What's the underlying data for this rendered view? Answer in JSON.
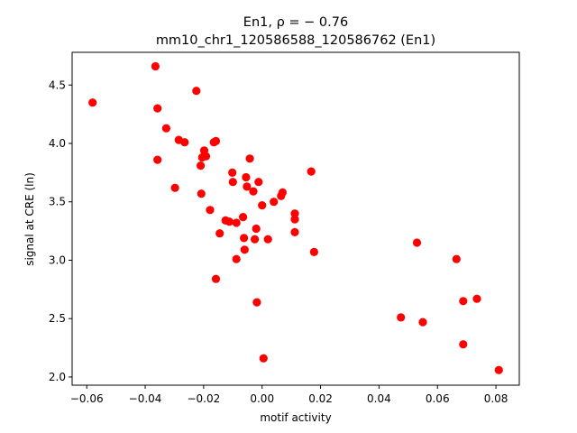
{
  "chart_data": {
    "type": "scatter",
    "title_line1": "En1, ρ = − 0.76",
    "title_line2": "mm10_chr1_120586588_120586762 (En1)",
    "xlabel": "motif activity",
    "ylabel": "signal at CRE (ln)",
    "xlim": [
      -0.065,
      0.088
    ],
    "ylim": [
      1.93,
      4.78
    ],
    "xticks": [
      -0.06,
      -0.04,
      -0.02,
      0.0,
      0.02,
      0.04,
      0.06,
      0.08
    ],
    "xtick_labels": [
      "−0.06",
      "−0.04",
      "−0.02",
      "0.00",
      "0.02",
      "0.04",
      "0.06",
      "0.08"
    ],
    "yticks": [
      2.0,
      2.5,
      3.0,
      3.5,
      4.0,
      4.5
    ],
    "ytick_labels": [
      "2.0",
      "2.5",
      "3.0",
      "3.5",
      "4.0",
      "4.5"
    ],
    "grid": false,
    "marker_color": "#ff0000",
    "points": [
      {
        "x": -0.058,
        "y": 4.35
      },
      {
        "x": -0.0365,
        "y": 4.66
      },
      {
        "x": -0.0358,
        "y": 4.3
      },
      {
        "x": -0.0358,
        "y": 3.86
      },
      {
        "x": -0.0328,
        "y": 4.13
      },
      {
        "x": -0.0298,
        "y": 3.62
      },
      {
        "x": -0.0285,
        "y": 4.03
      },
      {
        "x": -0.0265,
        "y": 4.01
      },
      {
        "x": -0.0225,
        "y": 4.45
      },
      {
        "x": -0.021,
        "y": 3.81
      },
      {
        "x": -0.0205,
        "y": 3.88
      },
      {
        "x": -0.0208,
        "y": 3.57
      },
      {
        "x": -0.0198,
        "y": 3.94
      },
      {
        "x": -0.0192,
        "y": 3.89
      },
      {
        "x": -0.0178,
        "y": 3.43
      },
      {
        "x": -0.0165,
        "y": 4.01
      },
      {
        "x": -0.0158,
        "y": 4.02
      },
      {
        "x": -0.0158,
        "y": 2.84
      },
      {
        "x": -0.0145,
        "y": 3.23
      },
      {
        "x": -0.0125,
        "y": 3.34
      },
      {
        "x": -0.0112,
        "y": 3.33
      },
      {
        "x": -0.0102,
        "y": 3.75
      },
      {
        "x": -0.01,
        "y": 3.67
      },
      {
        "x": -0.0088,
        "y": 3.32
      },
      {
        "x": -0.0088,
        "y": 3.01
      },
      {
        "x": -0.0065,
        "y": 3.37
      },
      {
        "x": -0.0062,
        "y": 3.19
      },
      {
        "x": -0.006,
        "y": 3.09
      },
      {
        "x": -0.0055,
        "y": 3.71
      },
      {
        "x": -0.0052,
        "y": 3.63
      },
      {
        "x": -0.0042,
        "y": 3.87
      },
      {
        "x": -0.003,
        "y": 3.59
      },
      {
        "x": -0.0025,
        "y": 3.18
      },
      {
        "x": -0.002,
        "y": 3.27
      },
      {
        "x": -0.0018,
        "y": 2.64
      },
      {
        "x": -0.0012,
        "y": 3.67
      },
      {
        "x": 0.0,
        "y": 3.47
      },
      {
        "x": 0.0005,
        "y": 2.16
      },
      {
        "x": 0.002,
        "y": 3.18
      },
      {
        "x": 0.004,
        "y": 3.5
      },
      {
        "x": 0.0065,
        "y": 3.55
      },
      {
        "x": 0.007,
        "y": 3.58
      },
      {
        "x": 0.0112,
        "y": 3.4
      },
      {
        "x": 0.0112,
        "y": 3.35
      },
      {
        "x": 0.0112,
        "y": 3.24
      },
      {
        "x": 0.0168,
        "y": 3.76
      },
      {
        "x": 0.0178,
        "y": 3.07
      },
      {
        "x": 0.0475,
        "y": 2.51
      },
      {
        "x": 0.053,
        "y": 3.15
      },
      {
        "x": 0.055,
        "y": 2.47
      },
      {
        "x": 0.0665,
        "y": 3.01
      },
      {
        "x": 0.0688,
        "y": 2.65
      },
      {
        "x": 0.0688,
        "y": 2.28
      },
      {
        "x": 0.0735,
        "y": 2.67
      },
      {
        "x": 0.081,
        "y": 2.06
      }
    ]
  }
}
